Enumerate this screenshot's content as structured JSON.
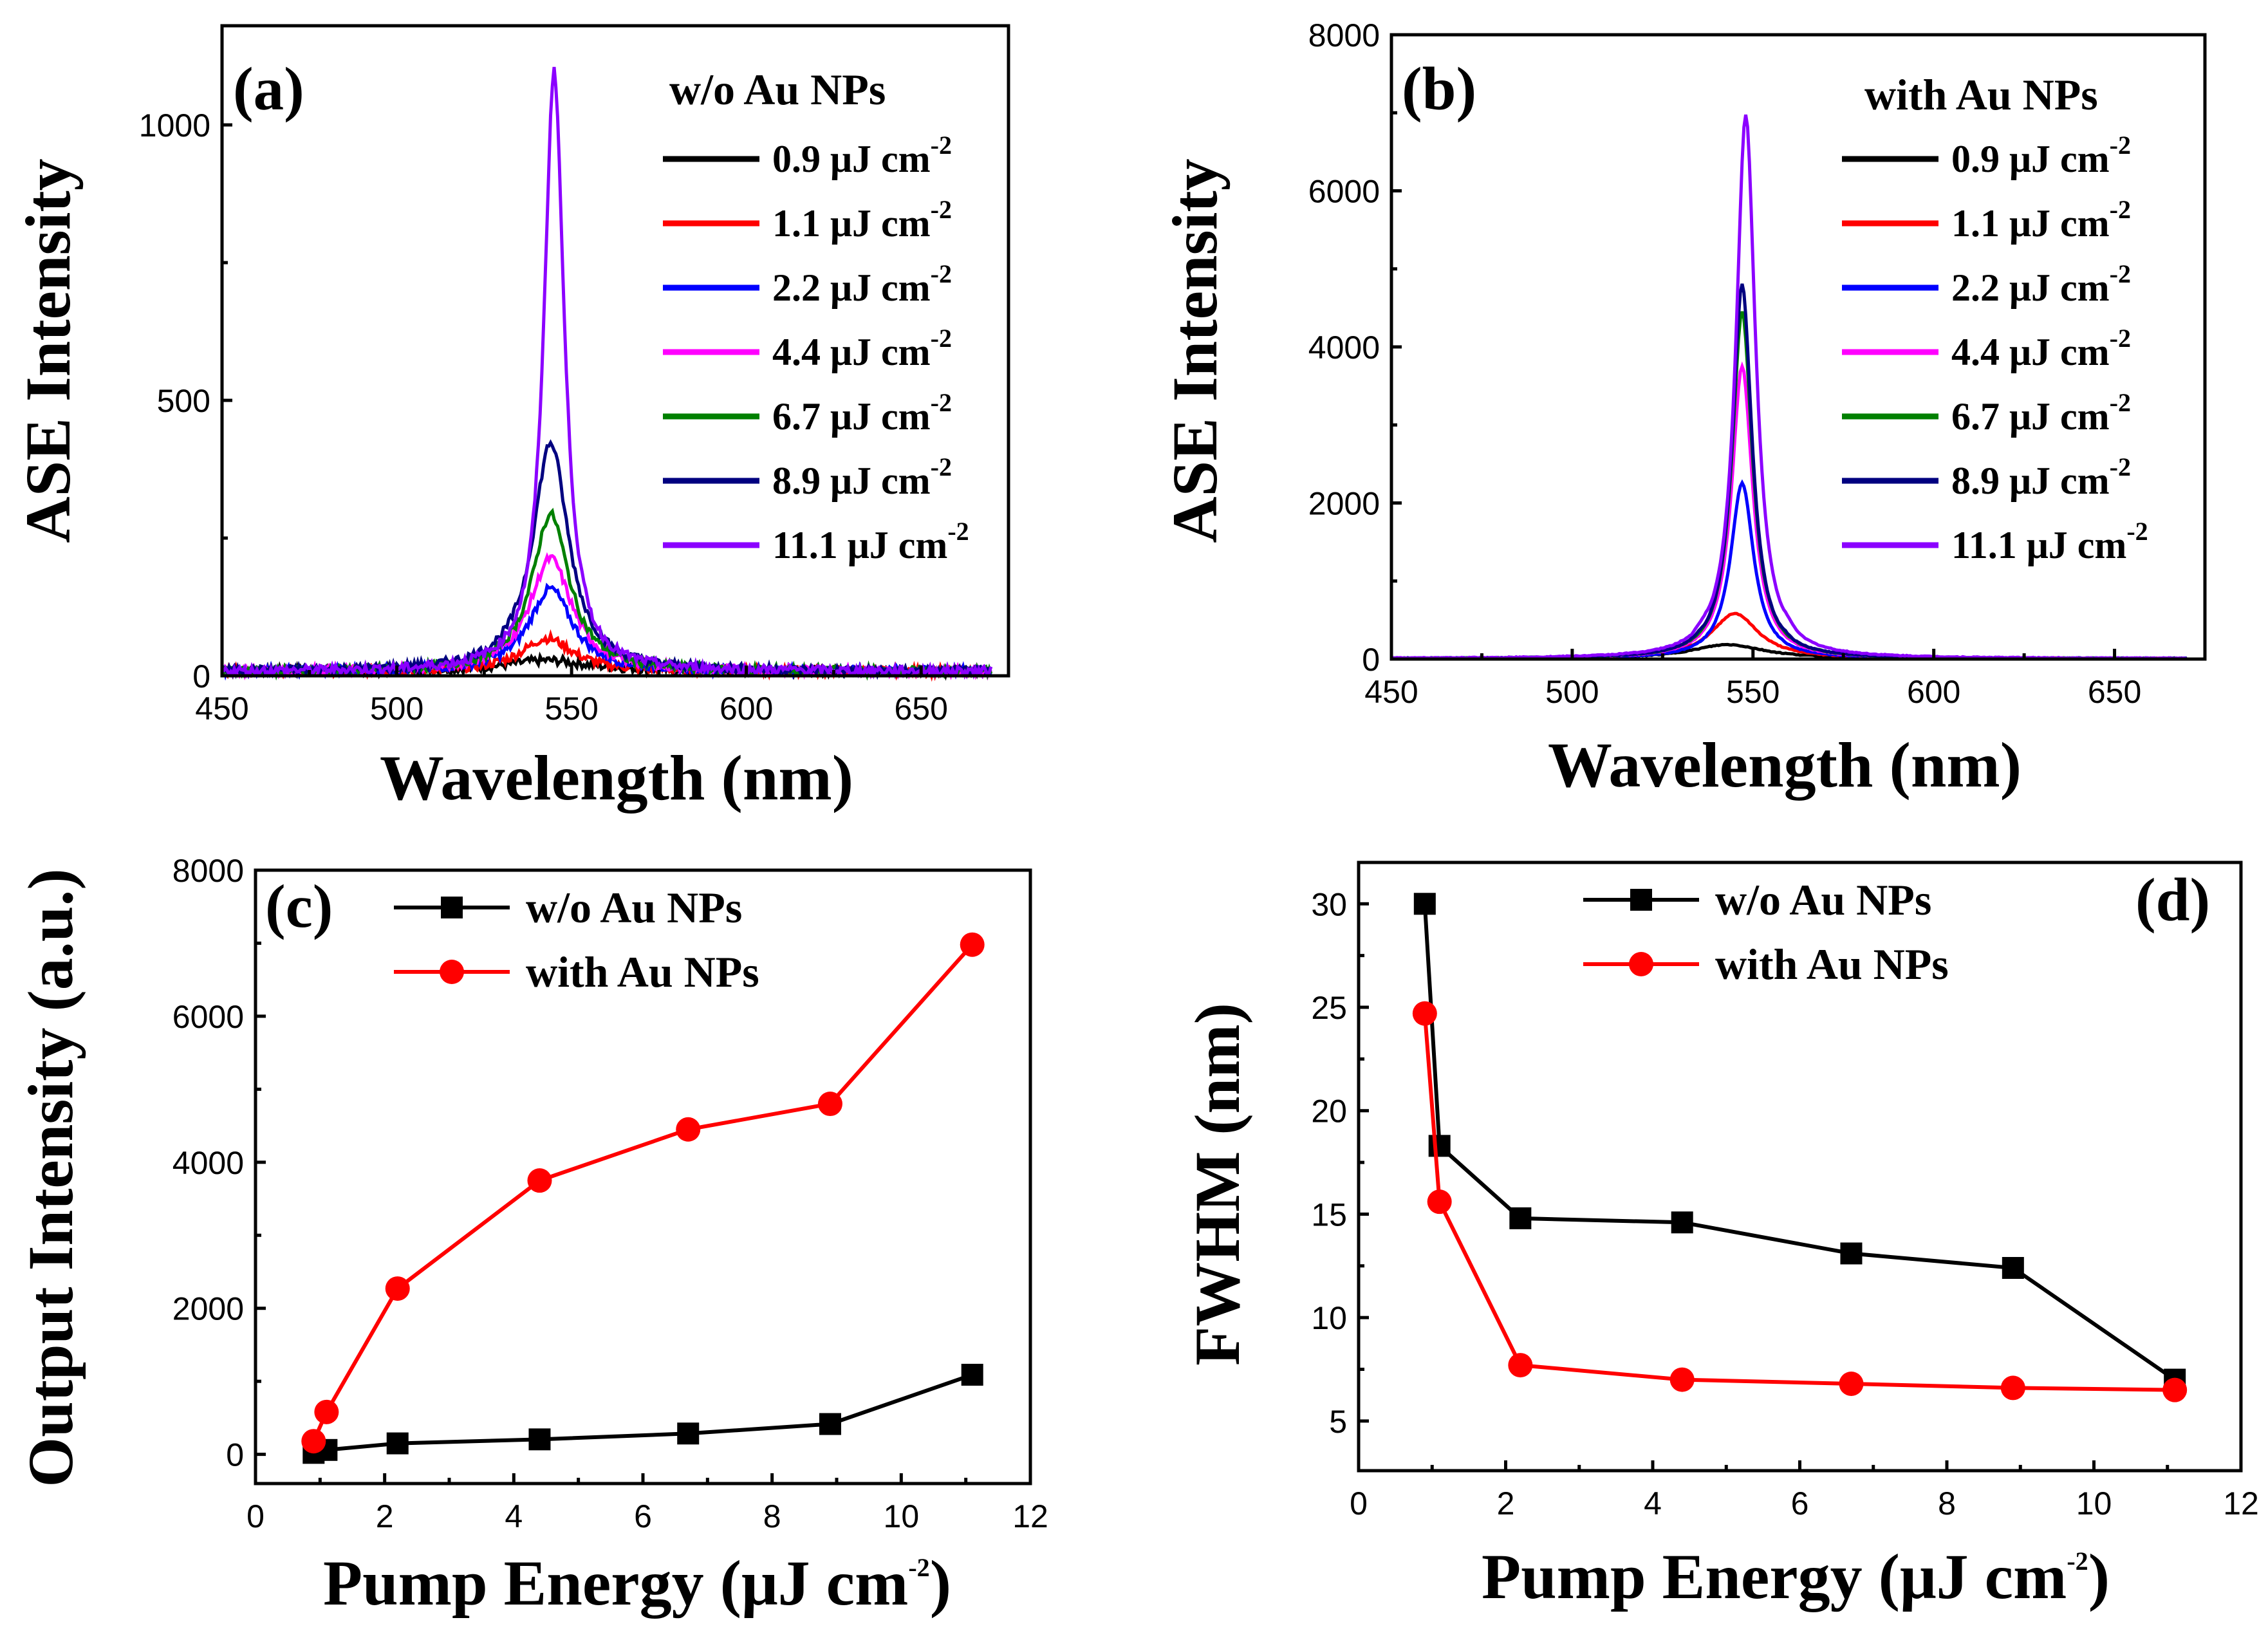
{
  "panels": {
    "a": {
      "label": "(a)",
      "legend_title": "w/o Au NPs",
      "xlabel": "Wavelength (nm)",
      "ylabel": "ASE Intensity",
      "xticks": [
        "450",
        "500",
        "550",
        "600",
        "650"
      ],
      "yticks": [
        "0",
        "500",
        "1000"
      ]
    },
    "b": {
      "label": "(b)",
      "legend_title": "with Au NPs",
      "xlabel": "Wavelength (nm)",
      "ylabel": "ASE Intensity",
      "xticks": [
        "450",
        "500",
        "550",
        "600",
        "650"
      ],
      "yticks": [
        "0",
        "2000",
        "4000",
        "6000",
        "8000"
      ]
    },
    "c": {
      "label": "(c)",
      "xlabel_main": "Pump Energy (μJ cm",
      "xlabel_sup": "-2",
      "xlabel_end": ")",
      "ylabel": "Output Intensity (a.u.)",
      "xticks": [
        "0",
        "2",
        "4",
        "6",
        "8",
        "10",
        "12"
      ],
      "yticks": [
        "0",
        "2000",
        "4000",
        "6000",
        "8000"
      ],
      "legend": [
        "w/o Au NPs",
        "with Au NPs"
      ]
    },
    "d": {
      "label": "(d)",
      "xlabel_main": "Pump Energy (μJ cm",
      "xlabel_sup": "-2",
      "xlabel_end": ")",
      "ylabel": "FWHM (nm)",
      "xticks": [
        "0",
        "2",
        "4",
        "6",
        "8",
        "10",
        "12"
      ],
      "yticks": [
        "5",
        "10",
        "15",
        "20",
        "25",
        "30"
      ],
      "legend": [
        "w/o Au NPs",
        "with Au NPs"
      ]
    }
  },
  "legend_fluences": {
    "values": [
      "0.9 μJ cm",
      "1.1 μJ cm",
      "2.2 μJ cm",
      "4.4 μJ cm",
      "6.7 μJ cm",
      "8.9 μJ cm",
      "11.1 μJ cm"
    ],
    "sup": "-2"
  },
  "colors": {
    "fluence": [
      "#000000",
      "#ff0000",
      "#0000ff",
      "#ff00ff",
      "#008000",
      "#000080",
      "#8b00ff"
    ],
    "black": "#000000",
    "red": "#ff0000"
  },
  "chart_data": [
    {
      "type": "line",
      "panel": "a",
      "title": "",
      "xlabel": "Wavelength (nm)",
      "ylabel": "ASE Intensity",
      "xlim": [
        450,
        675
      ],
      "ylim": [
        0,
        1180
      ],
      "series": [
        {
          "name": "0.9 μJ cm-2",
          "peak_x": 543,
          "peak_y": 20,
          "fwhm": 30
        },
        {
          "name": "1.1 μJ cm-2",
          "peak_x": 543,
          "peak_y": 60,
          "fwhm": 18
        },
        {
          "name": "2.2 μJ cm-2",
          "peak_x": 544,
          "peak_y": 150,
          "fwhm": 15
        },
        {
          "name": "4.4 μJ cm-2",
          "peak_x": 544,
          "peak_y": 205,
          "fwhm": 14.6
        },
        {
          "name": "6.7 μJ cm-2",
          "peak_x": 544,
          "peak_y": 285,
          "fwhm": 13
        },
        {
          "name": "8.9 μJ cm-2",
          "peak_x": 544,
          "peak_y": 415,
          "fwhm": 12.4
        },
        {
          "name": "11.1 μJ cm-2",
          "peak_x": 545,
          "peak_y": 1090,
          "fwhm": 7
        }
      ]
    },
    {
      "type": "line",
      "panel": "b",
      "title": "",
      "xlabel": "Wavelength (nm)",
      "ylabel": "ASE Intensity",
      "xlim": [
        450,
        675
      ],
      "ylim": [
        0,
        8000
      ],
      "series": [
        {
          "name": "0.9 μJ cm-2",
          "peak_x": 543,
          "peak_y": 180,
          "fwhm": 24.7
        },
        {
          "name": "1.1 μJ cm-2",
          "peak_x": 545,
          "peak_y": 580,
          "fwhm": 15.6
        },
        {
          "name": "2.2 μJ cm-2",
          "peak_x": 547,
          "peak_y": 2250,
          "fwhm": 7.7
        },
        {
          "name": "4.4 μJ cm-2",
          "peak_x": 547,
          "peak_y": 3750,
          "fwhm": 7
        },
        {
          "name": "6.7 μJ cm-2",
          "peak_x": 547,
          "peak_y": 4450,
          "fwhm": 6.8
        },
        {
          "name": "8.9 μJ cm-2",
          "peak_x": 547,
          "peak_y": 4800,
          "fwhm": 6.6
        },
        {
          "name": "11.1 μJ cm-2",
          "peak_x": 548,
          "peak_y": 6970,
          "fwhm": 6.5
        }
      ]
    },
    {
      "type": "line",
      "panel": "c",
      "title": "",
      "xlabel": "Pump Energy (μJ cm-2)",
      "ylabel": "Output Intensity (a.u.)",
      "xlim": [
        0,
        12
      ],
      "ylim": [
        -400,
        8000
      ],
      "x": [
        0.9,
        1.1,
        2.2,
        4.4,
        6.7,
        8.9,
        11.1
      ],
      "series": [
        {
          "name": "w/o Au NPs",
          "marker": "square",
          "values": [
            20,
            60,
            150,
            205,
            285,
            415,
            1090
          ]
        },
        {
          "name": "with Au NPs",
          "marker": "circle",
          "values": [
            180,
            580,
            2270,
            3750,
            4450,
            4800,
            6980
          ]
        }
      ]
    },
    {
      "type": "line",
      "panel": "d",
      "title": "",
      "xlabel": "Pump Energy (μJ cm-2)",
      "ylabel": "FWHM (nm)",
      "xlim": [
        0,
        12
      ],
      "ylim": [
        2.6,
        32
      ],
      "x": [
        0.9,
        1.1,
        2.2,
        4.4,
        6.7,
        8.9,
        11.1
      ],
      "series": [
        {
          "name": "w/o Au NPs",
          "marker": "square",
          "values": [
            30,
            18.3,
            14.8,
            14.6,
            13.1,
            12.4,
            7.0
          ]
        },
        {
          "name": "with Au NPs",
          "marker": "circle",
          "values": [
            24.7,
            15.6,
            7.7,
            7.0,
            6.8,
            6.6,
            6.5
          ]
        }
      ]
    }
  ]
}
